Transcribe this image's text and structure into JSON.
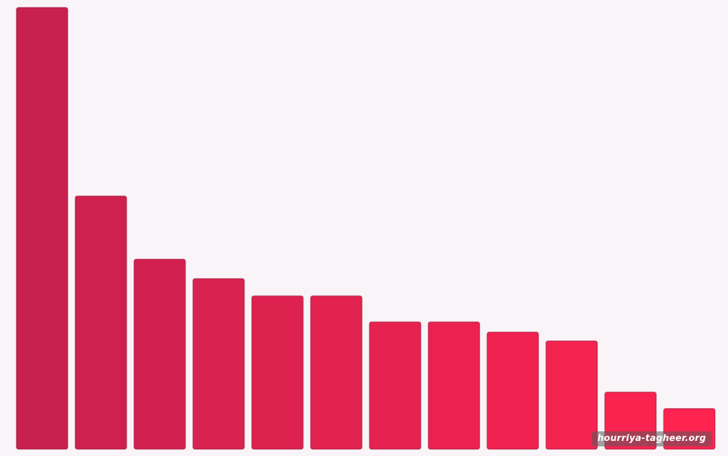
{
  "colors": {
    "background": "#f8f4f7",
    "bar_start": "#c9214f",
    "bar_end": "#ff2350",
    "bar_edge": "#9e1738"
  },
  "watermark": {
    "text": "hourriya-tagheer.org"
  },
  "chart_data": {
    "type": "bar",
    "title": "",
    "xlabel": "",
    "ylabel": "",
    "grid": false,
    "legend": "none",
    "ylim": [
      0,
      100
    ],
    "categories": [
      "",
      "",
      "",
      "",
      "",
      "",
      "",
      "",
      "",
      "",
      "",
      ""
    ],
    "values": [
      100,
      57.3,
      43,
      38.6,
      34.7,
      34.7,
      28.8,
      28.8,
      26.5,
      24.5,
      12.9,
      9.2
    ]
  }
}
